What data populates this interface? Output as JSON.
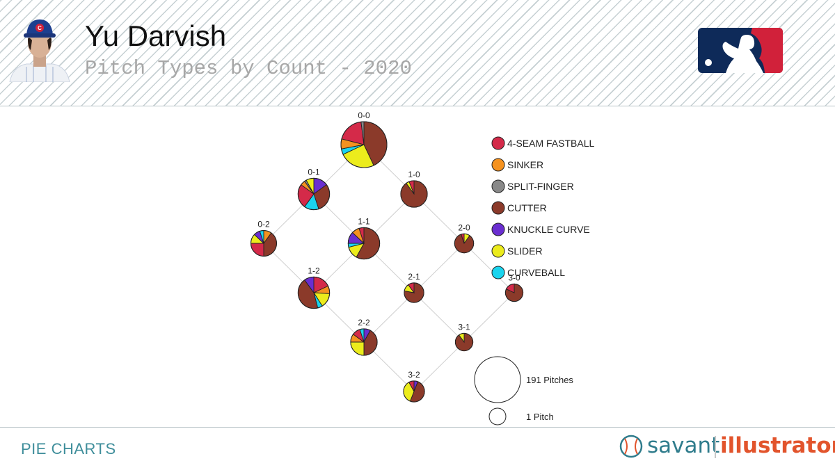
{
  "header": {
    "player_name": "Yu Darvish",
    "subtitle": "Pitch Types by Count - 2020"
  },
  "footer": {
    "label": "PIE CHARTS",
    "brand_left": "savant",
    "brand_right": "illustrator"
  },
  "colors": {
    "4-SEAM FASTBALL": "#d42a49",
    "SINKER": "#f5921f",
    "SPLIT-FINGER": "#888888",
    "CUTTER": "#8b3a2a",
    "KNUCKLE CURVE": "#6a2ed0",
    "SLIDER": "#ecec1c",
    "CURVEBALL": "#1ad4ee"
  },
  "chart_data": {
    "type": "pie",
    "legend": [
      "4-SEAM FASTBALL",
      "SINKER",
      "SPLIT-FINGER",
      "CUTTER",
      "KNUCKLE CURVE",
      "SLIDER",
      "CURVEBALL"
    ],
    "size_legend": [
      {
        "label": "191 Pitches",
        "pitches": 191
      },
      {
        "label": "1 Pitch",
        "pitches": 1
      }
    ],
    "counts": [
      {
        "count": "0-0",
        "total": 191,
        "slices": [
          [
            "CUTTER",
            0.43
          ],
          [
            "SLIDER",
            0.25
          ],
          [
            "CURVEBALL",
            0.04
          ],
          [
            "SINKER",
            0.07
          ],
          [
            "4-SEAM FASTBALL",
            0.19
          ],
          [
            "SPLIT-FINGER",
            0.02
          ]
        ]
      },
      {
        "count": "0-1",
        "total": 90,
        "slices": [
          [
            "KNUCKLE CURVE",
            0.15
          ],
          [
            "CUTTER",
            0.3
          ],
          [
            "CURVEBALL",
            0.15
          ],
          [
            "4-SEAM FASTBALL",
            0.25
          ],
          [
            "SINKER",
            0.05
          ],
          [
            "SPLIT-FINGER",
            0.02
          ],
          [
            "SLIDER",
            0.08
          ]
        ]
      },
      {
        "count": "1-0",
        "total": 64,
        "slices": [
          [
            "CUTTER",
            0.9
          ],
          [
            "SLIDER",
            0.04
          ],
          [
            "4-SEAM FASTBALL",
            0.06
          ]
        ]
      },
      {
        "count": "0-2",
        "total": 60,
        "slices": [
          [
            "SINKER",
            0.1
          ],
          [
            "CUTTER",
            0.4
          ],
          [
            "4-SEAM FASTBALL",
            0.25
          ],
          [
            "SLIDER",
            0.12
          ],
          [
            "KNUCKLE CURVE",
            0.08
          ],
          [
            "CURVEBALL",
            0.05
          ]
        ]
      },
      {
        "count": "1-1",
        "total": 90,
        "slices": [
          [
            "CUTTER",
            0.58
          ],
          [
            "SLIDER",
            0.13
          ],
          [
            "CURVEBALL",
            0.04
          ],
          [
            "KNUCKLE CURVE",
            0.12
          ],
          [
            "SINKER",
            0.08
          ],
          [
            "4-SEAM FASTBALL",
            0.05
          ]
        ]
      },
      {
        "count": "2-0",
        "total": 33,
        "slices": [
          [
            "SLIDER",
            0.1
          ],
          [
            "CUTTER",
            0.85
          ],
          [
            "4-SEAM FASTBALL",
            0.05
          ]
        ]
      },
      {
        "count": "1-2",
        "total": 90,
        "slices": [
          [
            "4-SEAM FASTBALL",
            0.18
          ],
          [
            "SINKER",
            0.08
          ],
          [
            "SLIDER",
            0.15
          ],
          [
            "CURVEBALL",
            0.05
          ],
          [
            "CUTTER",
            0.44
          ],
          [
            "KNUCKLE CURVE",
            0.1
          ]
        ]
      },
      {
        "count": "2-1",
        "total": 35,
        "slices": [
          [
            "CUTTER",
            0.78
          ],
          [
            "SLIDER",
            0.12
          ],
          [
            "4-SEAM FASTBALL",
            0.1
          ]
        ]
      },
      {
        "count": "3-0",
        "total": 28,
        "slices": [
          [
            "CUTTER",
            0.82
          ],
          [
            "4-SEAM FASTBALL",
            0.18
          ]
        ]
      },
      {
        "count": "2-2",
        "total": 64,
        "slices": [
          [
            "KNUCKLE CURVE",
            0.08
          ],
          [
            "CUTTER",
            0.42
          ],
          [
            "SLIDER",
            0.25
          ],
          [
            "SINKER",
            0.1
          ],
          [
            "4-SEAM FASTBALL",
            0.1
          ],
          [
            "CURVEBALL",
            0.05
          ]
        ]
      },
      {
        "count": "3-1",
        "total": 28,
        "slices": [
          [
            "CUTTER",
            0.9
          ],
          [
            "SLIDER",
            0.1
          ]
        ]
      },
      {
        "count": "3-2",
        "total": 40,
        "slices": [
          [
            "KNUCKLE CURVE",
            0.06
          ],
          [
            "CUTTER",
            0.5
          ],
          [
            "SLIDER",
            0.36
          ],
          [
            "4-SEAM FASTBALL",
            0.08
          ]
        ]
      }
    ],
    "edges": [
      [
        "0-0",
        "0-1"
      ],
      [
        "0-0",
        "1-0"
      ],
      [
        "0-1",
        "0-2"
      ],
      [
        "0-1",
        "1-1"
      ],
      [
        "1-0",
        "1-1"
      ],
      [
        "1-0",
        "2-0"
      ],
      [
        "0-2",
        "1-2"
      ],
      [
        "1-1",
        "1-2"
      ],
      [
        "1-1",
        "2-1"
      ],
      [
        "2-0",
        "2-1"
      ],
      [
        "2-0",
        "3-0"
      ],
      [
        "1-2",
        "2-2"
      ],
      [
        "2-1",
        "2-2"
      ],
      [
        "2-1",
        "3-1"
      ],
      [
        "3-0",
        "3-1"
      ],
      [
        "2-2",
        "3-2"
      ],
      [
        "3-1",
        "3-2"
      ]
    ]
  }
}
